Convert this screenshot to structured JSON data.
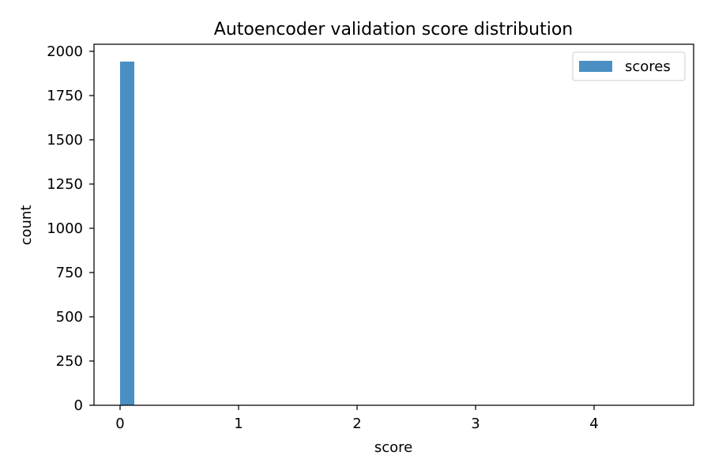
{
  "chart_data": {
    "type": "bar",
    "title": "Autoencoder validation score distribution",
    "xlabel": "score",
    "ylabel": "count",
    "xlim": [
      -0.22,
      4.84
    ],
    "ylim": [
      0,
      2040
    ],
    "x_ticks": [
      0,
      1,
      2,
      3,
      4
    ],
    "x_tick_labels": [
      "0",
      "1",
      "2",
      "3",
      "4"
    ],
    "y_ticks": [
      0,
      250,
      500,
      750,
      1000,
      1250,
      1500,
      1750,
      2000
    ],
    "y_tick_labels": [
      "0",
      "250",
      "500",
      "750",
      "1000",
      "1250",
      "1500",
      "1750",
      "2000"
    ],
    "grid": false,
    "legend": {
      "position": "top-right",
      "entries": [
        "scores"
      ]
    },
    "series": [
      {
        "name": "scores",
        "color": "#4a8fc3",
        "bins": [
          {
            "x0": 0.0,
            "x1": 0.12,
            "count": 1942
          },
          {
            "x0": 0.12,
            "x1": 4.62,
            "count": 0
          }
        ]
      }
    ]
  }
}
